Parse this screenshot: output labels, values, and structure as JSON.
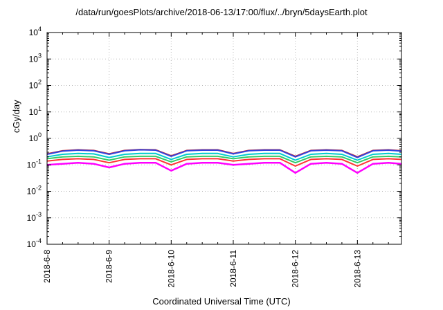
{
  "chart_data": {
    "type": "line",
    "title": "/data/run/goesPlots/archive/2018-06-13/17:00/flux/../bryn/5daysEarth.plot",
    "xlabel": "Coordinated Universal Time (UTC)",
    "ylabel": "cGy/day",
    "yscale": "log",
    "ylim_exponents": [
      -4,
      4
    ],
    "y_tick_labels": [
      {
        "base": "10",
        "exp": "4"
      },
      {
        "base": "10",
        "exp": "3"
      },
      {
        "base": "10",
        "exp": "2"
      },
      {
        "base": "10",
        "exp": "1"
      },
      {
        "base": "10",
        "exp": "0"
      },
      {
        "base": "10",
        "exp": "-1"
      },
      {
        "base": "10",
        "exp": "-2"
      },
      {
        "base": "10",
        "exp": "-3"
      },
      {
        "base": "10",
        "exp": "-4"
      }
    ],
    "x_range": [
      "2018-6-8",
      "2018-6-13 17:00"
    ],
    "x_tick_labels": [
      "2018-6-8",
      "2018-6-9",
      "2018-6-10",
      "2018-6-11",
      "2018-6-12",
      "2018-6-13"
    ],
    "grid": true,
    "x_days": [
      0,
      0.25,
      0.5,
      0.75,
      1.0,
      1.25,
      1.5,
      1.75,
      2.0,
      2.25,
      2.5,
      2.75,
      3.0,
      3.25,
      3.5,
      3.75,
      4.0,
      4.25,
      4.5,
      4.75,
      5.0,
      5.25,
      5.5,
      5.71
    ],
    "series": [
      {
        "color": "#ff00ff",
        "values": [
          0.1,
          0.11,
          0.12,
          0.11,
          0.08,
          0.11,
          0.12,
          0.12,
          0.06,
          0.11,
          0.12,
          0.12,
          0.1,
          0.11,
          0.12,
          0.12,
          0.05,
          0.11,
          0.12,
          0.11,
          0.05,
          0.11,
          0.12,
          0.11
        ]
      },
      {
        "color": "#ff3333",
        "values": [
          0.14,
          0.16,
          0.17,
          0.16,
          0.12,
          0.16,
          0.17,
          0.17,
          0.1,
          0.16,
          0.17,
          0.17,
          0.14,
          0.16,
          0.17,
          0.17,
          0.09,
          0.16,
          0.17,
          0.16,
          0.09,
          0.16,
          0.17,
          0.16
        ]
      },
      {
        "color": "#33cc66",
        "values": [
          0.17,
          0.2,
          0.21,
          0.2,
          0.15,
          0.2,
          0.21,
          0.21,
          0.13,
          0.2,
          0.21,
          0.21,
          0.17,
          0.2,
          0.21,
          0.21,
          0.12,
          0.2,
          0.21,
          0.2,
          0.12,
          0.2,
          0.21,
          0.2
        ]
      },
      {
        "color": "#00cccc",
        "values": [
          0.2,
          0.25,
          0.27,
          0.26,
          0.19,
          0.25,
          0.27,
          0.27,
          0.16,
          0.25,
          0.27,
          0.27,
          0.2,
          0.25,
          0.27,
          0.27,
          0.15,
          0.25,
          0.27,
          0.25,
          0.15,
          0.25,
          0.27,
          0.25
        ]
      },
      {
        "color": "#cc2222",
        "values": [
          0.26,
          0.34,
          0.37,
          0.35,
          0.26,
          0.35,
          0.38,
          0.37,
          0.22,
          0.35,
          0.37,
          0.37,
          0.27,
          0.35,
          0.37,
          0.37,
          0.21,
          0.35,
          0.37,
          0.35,
          0.2,
          0.35,
          0.37,
          0.34
        ]
      },
      {
        "color": "#3344dd",
        "values": [
          0.25,
          0.33,
          0.36,
          0.34,
          0.25,
          0.34,
          0.37,
          0.36,
          0.21,
          0.34,
          0.36,
          0.36,
          0.26,
          0.34,
          0.36,
          0.36,
          0.2,
          0.34,
          0.36,
          0.34,
          0.19,
          0.34,
          0.36,
          0.33
        ]
      }
    ]
  }
}
